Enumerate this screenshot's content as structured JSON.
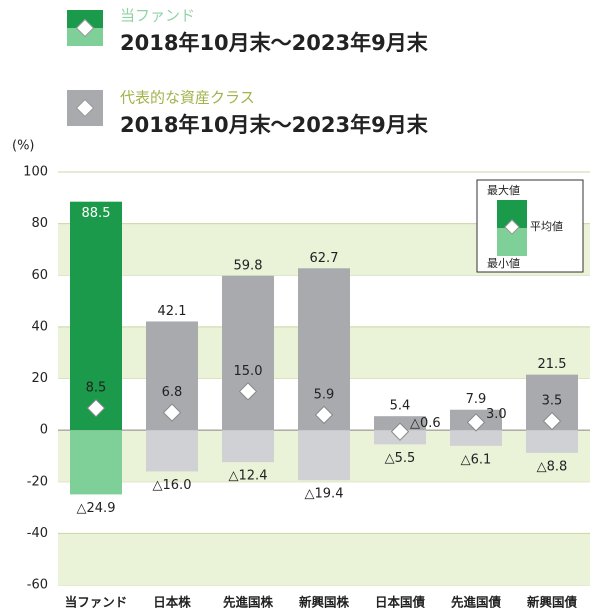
{
  "chart_data": {
    "type": "range",
    "legend_groups": [
      {
        "label": "当ファンド",
        "period": "2018年10月末～2023年9月末"
      },
      {
        "label": "代表的な資産クラス",
        "period": "2018年10月末～2023年9月末"
      }
    ],
    "y_label": "(%)",
    "categories": [
      "当ファンド",
      "日本株",
      "先進国株",
      "新興国株",
      "日本国債",
      "先進国債",
      "新興国債"
    ],
    "series": [
      {
        "name": "最大値",
        "color": "#a9aaae",
        "values": [
          88.5,
          42.1,
          59.8,
          62.7,
          5.4,
          7.9,
          21.5
        ],
        "value_labels": [
          "88.5",
          "42.1",
          "59.8",
          "62.7",
          "5.4",
          "7.9",
          "21.5"
        ]
      },
      {
        "name": "平均値",
        "color": "#ffffff",
        "values": [
          8.5,
          6.8,
          15.0,
          5.9,
          -0.6,
          3.0,
          3.5
        ],
        "value_labels": [
          "8.5",
          "6.8",
          "15.0",
          "5.9",
          "△0.6",
          "3.0",
          "3.5"
        ]
      },
      {
        "name": "最小値",
        "color": "#d0d1d4",
        "values": [
          -24.9,
          -16.0,
          -12.4,
          -19.4,
          -5.5,
          -6.1,
          -8.8
        ],
        "value_labels": [
          "△24.9",
          "△16.0",
          "△12.4",
          "△19.4",
          "△5.5",
          "△6.1",
          "△8.8"
        ]
      }
    ],
    "highlight": {
      "index": 0,
      "max_color": "#1b9a4b",
      "min_color": "#7fcf98"
    },
    "ylim": [
      -60,
      100
    ],
    "yticks": [
      -60,
      -40,
      -20,
      0,
      20,
      40,
      60,
      80,
      100
    ],
    "grid": true
  }
}
